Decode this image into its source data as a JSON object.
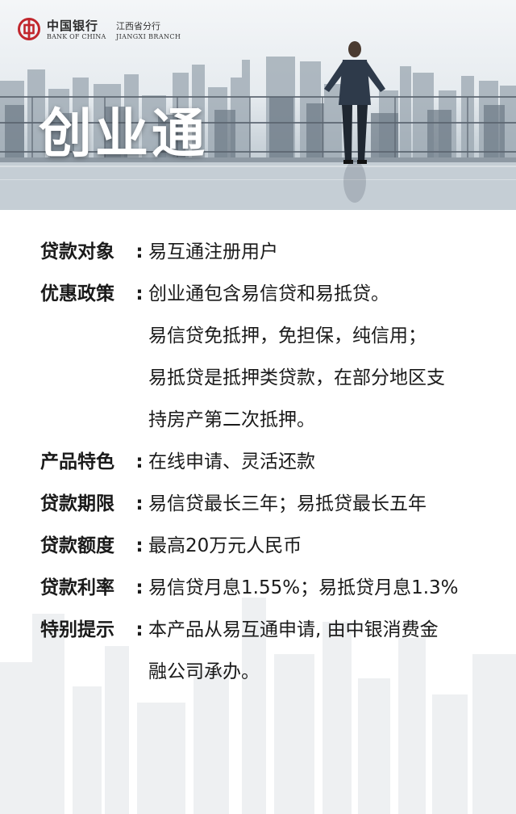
{
  "brand": {
    "name_cn": "中国银行",
    "branch_cn": "江西省分行",
    "name_en": "BANK OF CHINA",
    "branch_en": "JIANGXI BRANCH",
    "color": "#c1272d"
  },
  "hero": {
    "title": "创业通"
  },
  "info": [
    {
      "label": "贷款对象",
      "colon": ":",
      "value": "易互通注册用户",
      "cont": []
    },
    {
      "label": "优惠政策",
      "colon": ":",
      "value": "创业通包含易信贷和易抵贷。",
      "cont": [
        "易信贷免抵押，免担保，纯信用；",
        "易抵贷是抵押类贷款，在部分地区支",
        "持房产第二次抵押。"
      ]
    },
    {
      "label": "产品特色",
      "colon": ":",
      "value": "在线申请、灵活还款",
      "cont": []
    },
    {
      "label": "贷款期限",
      "colon": ":",
      "value": "易信贷最长三年；易抵贷最长五年",
      "cont": []
    },
    {
      "label": "贷款额度",
      "colon": ":",
      "value": "最高20万元人民币",
      "cont": []
    },
    {
      "label": "贷款利率",
      "colon": ":",
      "value": "易信贷月息1.55%；易抵贷月息1.3%",
      "cont": []
    },
    {
      "label": "特别提示",
      "colon": ":",
      "value": "本产品从易互通申请, 由中银消费金",
      "cont": [
        "融公司承办。"
      ]
    }
  ]
}
